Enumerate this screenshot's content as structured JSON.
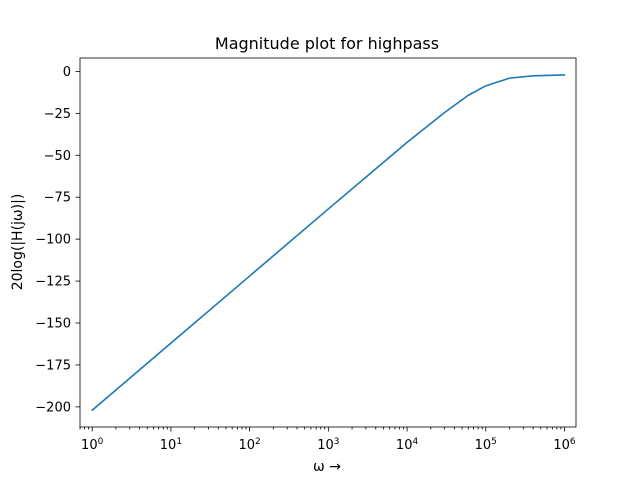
{
  "chart_data": {
    "type": "line",
    "title": "Magnitude plot for highpass",
    "xlabel": "ω →",
    "ylabel": "20log(|H(jω)|)",
    "xscale": "log",
    "xlim": [
      0.7,
      1400000
    ],
    "ylim": [
      -212,
      8
    ],
    "grid": false,
    "legend": "none",
    "x_ticks": [
      1,
      10,
      100,
      1000,
      10000,
      100000,
      1000000
    ],
    "x_tick_labels": [
      {
        "base": "10",
        "exp": "0"
      },
      {
        "base": "10",
        "exp": "1"
      },
      {
        "base": "10",
        "exp": "2"
      },
      {
        "base": "10",
        "exp": "3"
      },
      {
        "base": "10",
        "exp": "4"
      },
      {
        "base": "10",
        "exp": "5"
      },
      {
        "base": "10",
        "exp": "6"
      }
    ],
    "y_ticks": [
      0,
      -25,
      -50,
      -75,
      -100,
      -125,
      -150,
      -175,
      -200
    ],
    "y_tick_labels": [
      "0",
      "−25",
      "−50",
      "−75",
      "−100",
      "−125",
      "−150",
      "−175",
      "−200"
    ],
    "series": [
      {
        "color": "#1f77b4",
        "x": [
          1,
          10,
          100,
          1000,
          10000,
          30000,
          60000,
          100000,
          200000,
          400000,
          1000000
        ],
        "y": [
          -202,
          -162,
          -122,
          -82,
          -42.3,
          -24.5,
          -14.2,
          -8.6,
          -4.0,
          -2.6,
          -2.1
        ]
      }
    ]
  }
}
